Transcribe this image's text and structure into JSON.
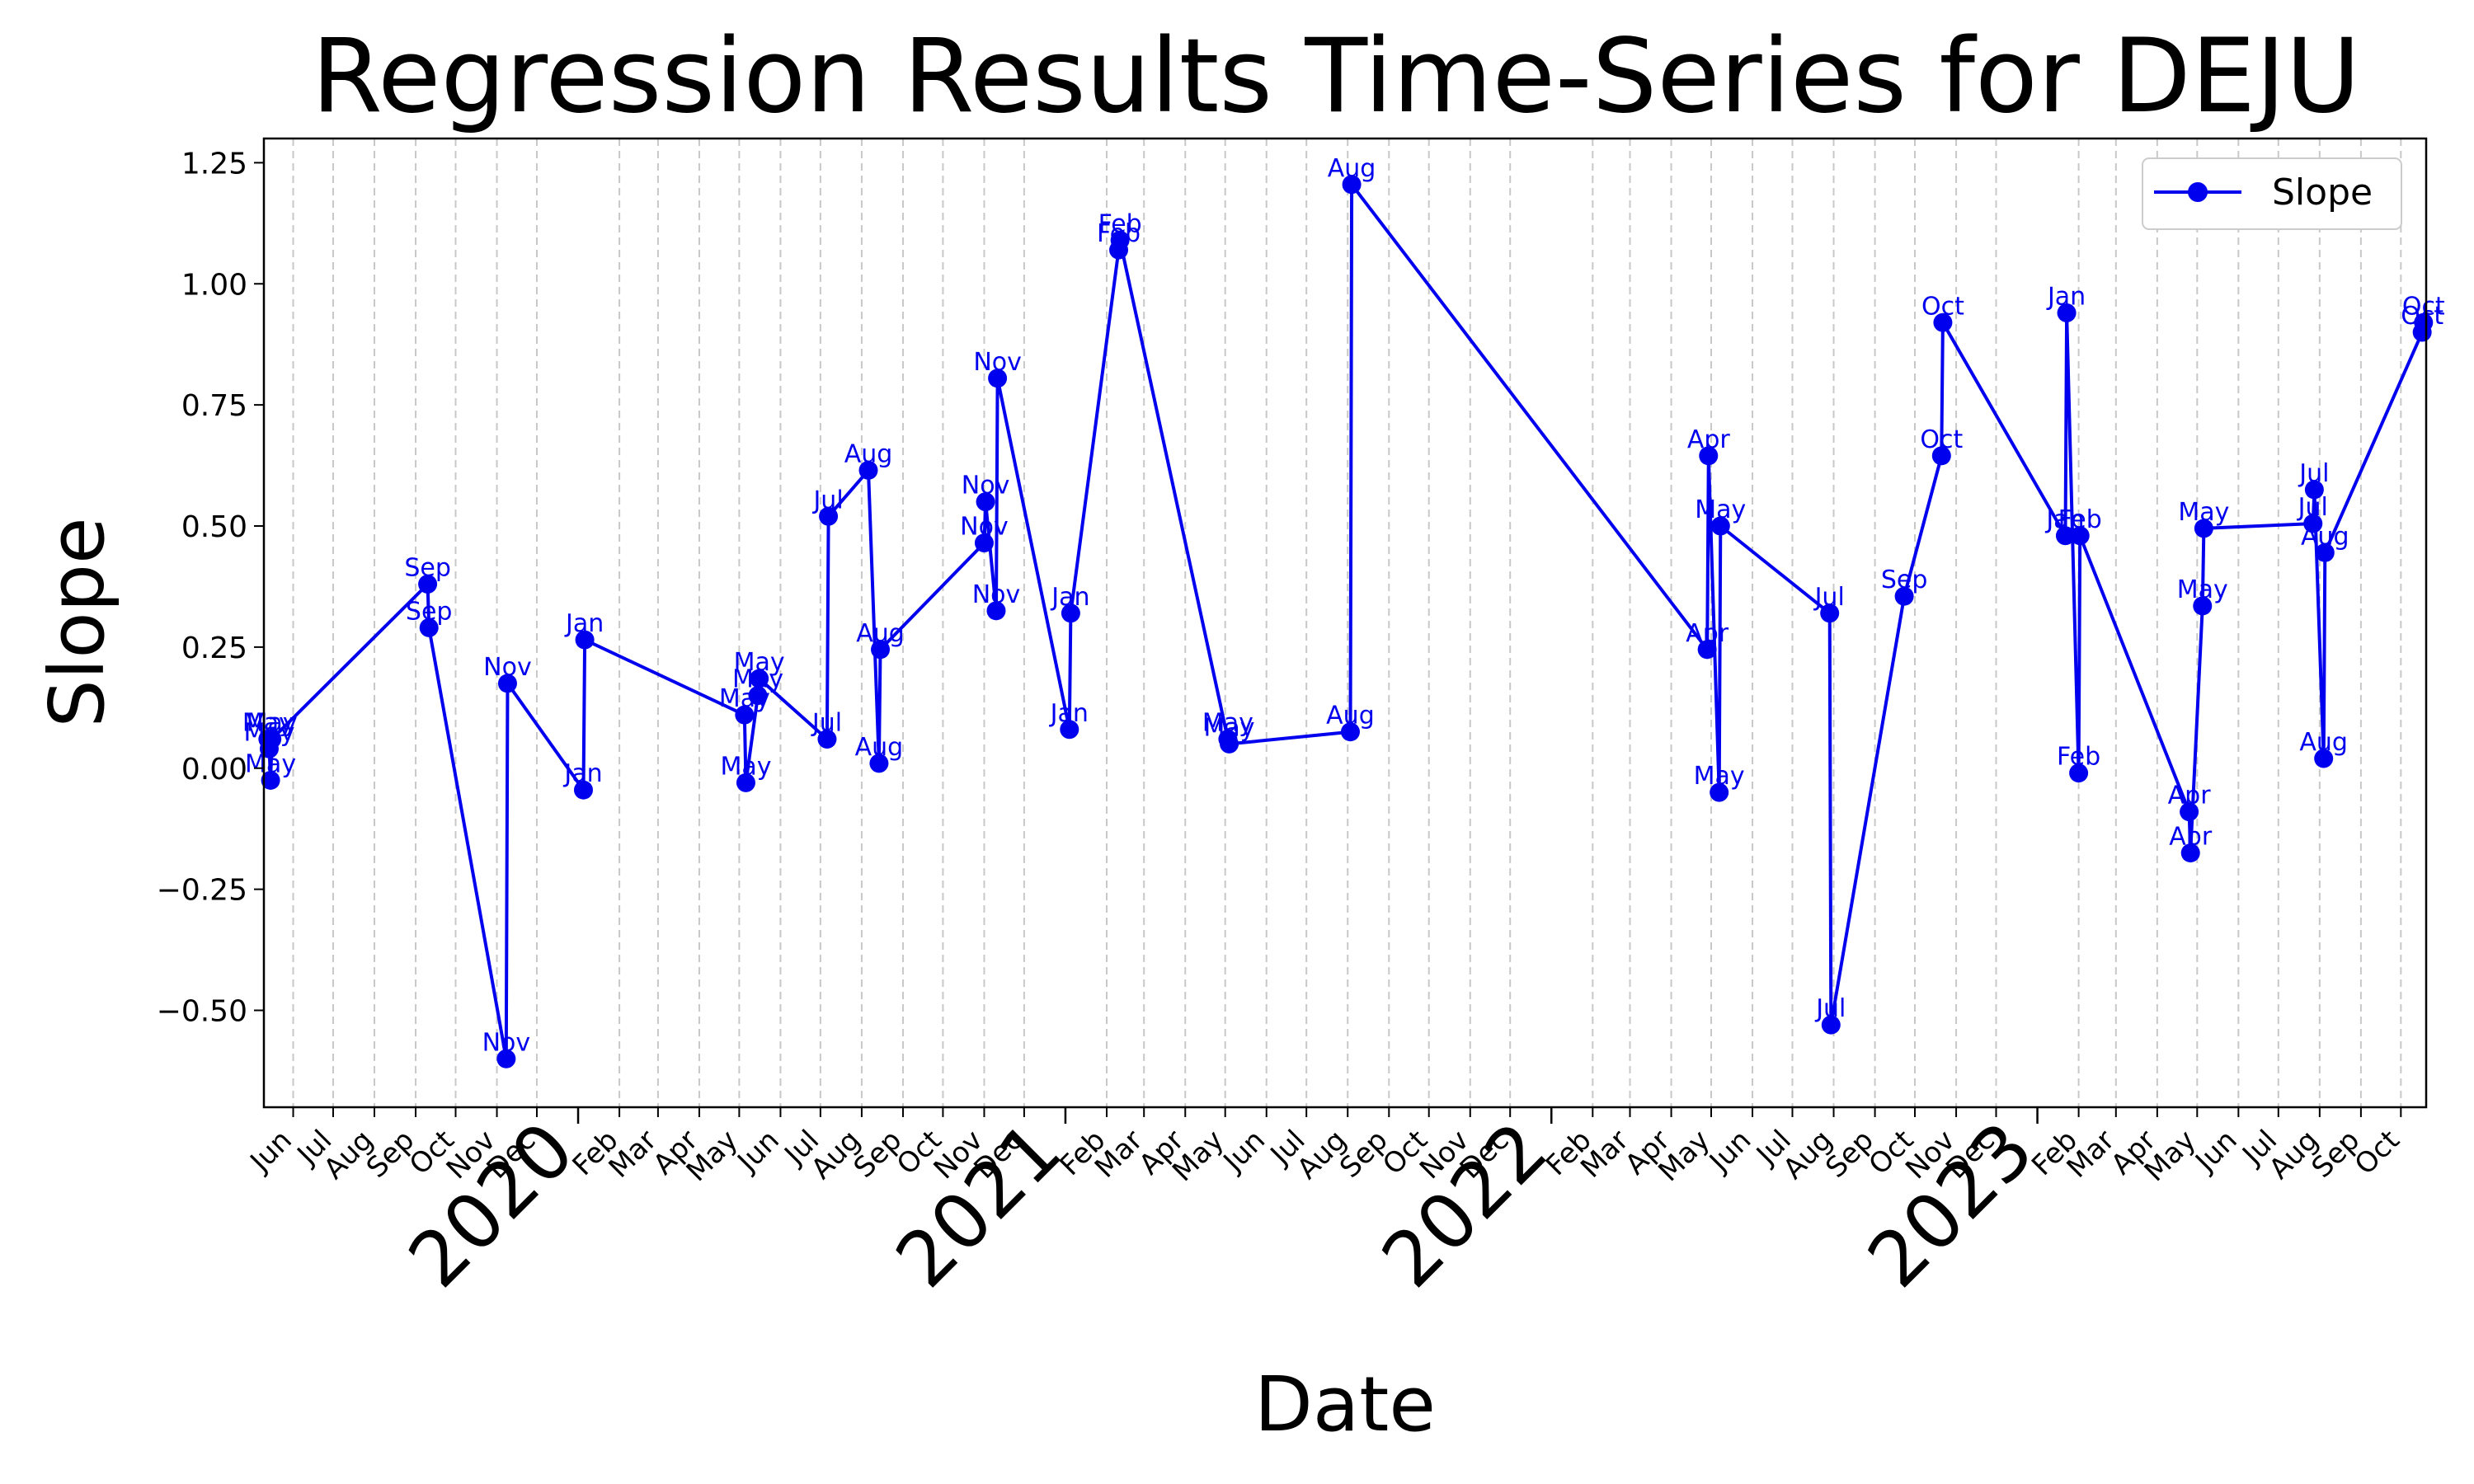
{
  "chart_data": {
    "type": "line",
    "title": "Regression Results Time-Series for DEJU",
    "xlabel": "Date",
    "ylabel": "Slope",
    "ylim": [
      -0.7,
      1.3
    ],
    "xlim": [
      "2019-05-10",
      "2023-10-20"
    ],
    "y_ticks": [
      -0.5,
      -0.25,
      0.0,
      0.25,
      0.5,
      0.75,
      1.0,
      1.25
    ],
    "y_tick_labels": [
      "−0.50",
      "−0.25",
      "0.00",
      "0.25",
      "0.50",
      "0.75",
      "1.00",
      "1.25"
    ],
    "grid": "vertical dashed lines at each month",
    "legend": "upper right",
    "line_color": "#0000ee",
    "month_ticks": [
      {
        "date": "2019-06-01",
        "label": "Jun"
      },
      {
        "date": "2019-07-01",
        "label": "Jul"
      },
      {
        "date": "2019-08-01",
        "label": "Aug"
      },
      {
        "date": "2019-09-01",
        "label": "Sep"
      },
      {
        "date": "2019-10-01",
        "label": "Oct"
      },
      {
        "date": "2019-11-01",
        "label": "Nov"
      },
      {
        "date": "2019-12-01",
        "label": "Dec"
      },
      {
        "date": "2020-02-01",
        "label": "Feb"
      },
      {
        "date": "2020-03-01",
        "label": "Mar"
      },
      {
        "date": "2020-04-01",
        "label": "Apr"
      },
      {
        "date": "2020-05-01",
        "label": "May"
      },
      {
        "date": "2020-06-01",
        "label": "Jun"
      },
      {
        "date": "2020-07-01",
        "label": "Jul"
      },
      {
        "date": "2020-08-01",
        "label": "Aug"
      },
      {
        "date": "2020-09-01",
        "label": "Sep"
      },
      {
        "date": "2020-10-01",
        "label": "Oct"
      },
      {
        "date": "2020-11-01",
        "label": "Nov"
      },
      {
        "date": "2020-12-01",
        "label": "Dec"
      },
      {
        "date": "2021-02-01",
        "label": "Feb"
      },
      {
        "date": "2021-03-01",
        "label": "Mar"
      },
      {
        "date": "2021-04-01",
        "label": "Apr"
      },
      {
        "date": "2021-05-01",
        "label": "May"
      },
      {
        "date": "2021-06-01",
        "label": "Jun"
      },
      {
        "date": "2021-07-01",
        "label": "Jul"
      },
      {
        "date": "2021-08-01",
        "label": "Aug"
      },
      {
        "date": "2021-09-01",
        "label": "Sep"
      },
      {
        "date": "2021-10-01",
        "label": "Oct"
      },
      {
        "date": "2021-11-01",
        "label": "Nov"
      },
      {
        "date": "2021-12-01",
        "label": "Dec"
      },
      {
        "date": "2022-02-01",
        "label": "Feb"
      },
      {
        "date": "2022-03-01",
        "label": "Mar"
      },
      {
        "date": "2022-04-01",
        "label": "Apr"
      },
      {
        "date": "2022-05-01",
        "label": "May"
      },
      {
        "date": "2022-06-01",
        "label": "Jun"
      },
      {
        "date": "2022-07-01",
        "label": "Jul"
      },
      {
        "date": "2022-08-01",
        "label": "Aug"
      },
      {
        "date": "2022-09-01",
        "label": "Sep"
      },
      {
        "date": "2022-10-01",
        "label": "Oct"
      },
      {
        "date": "2022-11-01",
        "label": "Nov"
      },
      {
        "date": "2022-12-01",
        "label": "Dec"
      },
      {
        "date": "2023-02-01",
        "label": "Feb"
      },
      {
        "date": "2023-03-01",
        "label": "Mar"
      },
      {
        "date": "2023-04-01",
        "label": "Apr"
      },
      {
        "date": "2023-05-01",
        "label": "May"
      },
      {
        "date": "2023-06-01",
        "label": "Jun"
      },
      {
        "date": "2023-07-01",
        "label": "Jul"
      },
      {
        "date": "2023-08-01",
        "label": "Aug"
      },
      {
        "date": "2023-09-01",
        "label": "Sep"
      },
      {
        "date": "2023-10-01",
        "label": "Oct"
      }
    ],
    "year_ticks": [
      {
        "date": "2020-01-01",
        "label": "2020"
      },
      {
        "date": "2021-01-01",
        "label": "2021"
      },
      {
        "date": "2022-01-01",
        "label": "2022"
      },
      {
        "date": "2023-01-01",
        "label": "2023"
      }
    ],
    "series": [
      {
        "name": "Slope",
        "points": [
          {
            "x": "2019-05-13",
            "y": 0.06,
            "label": "May"
          },
          {
            "x": "2019-05-14",
            "y": 0.04,
            "label": "May"
          },
          {
            "x": "2019-05-15",
            "y": -0.025,
            "label": "May"
          },
          {
            "x": "2019-05-16",
            "y": 0.06,
            "label": "May"
          },
          {
            "x": "2019-09-10",
            "y": 0.38,
            "label": "Sep"
          },
          {
            "x": "2019-09-11",
            "y": 0.29,
            "label": "Sep"
          },
          {
            "x": "2019-11-08",
            "y": -0.6,
            "label": "Nov"
          },
          {
            "x": "2019-11-09",
            "y": 0.175,
            "label": "Nov"
          },
          {
            "x": "2020-01-05",
            "y": -0.045,
            "label": "Jan"
          },
          {
            "x": "2020-01-06",
            "y": 0.265,
            "label": "Jan"
          },
          {
            "x": "2020-05-05",
            "y": 0.11,
            "label": "May"
          },
          {
            "x": "2020-05-06",
            "y": -0.03,
            "label": "May"
          },
          {
            "x": "2020-05-15",
            "y": 0.15,
            "label": "May"
          },
          {
            "x": "2020-05-16",
            "y": 0.185,
            "label": "May"
          },
          {
            "x": "2020-07-06",
            "y": 0.06,
            "label": "Jul"
          },
          {
            "x": "2020-07-07",
            "y": 0.52,
            "label": "Jul"
          },
          {
            "x": "2020-08-06",
            "y": 0.615,
            "label": "Aug"
          },
          {
            "x": "2020-08-14",
            "y": 0.01,
            "label": "Aug"
          },
          {
            "x": "2020-08-15",
            "y": 0.245,
            "label": "Aug"
          },
          {
            "x": "2020-11-01",
            "y": 0.465,
            "label": "Nov"
          },
          {
            "x": "2020-11-02",
            "y": 0.55,
            "label": "Nov"
          },
          {
            "x": "2020-11-10",
            "y": 0.325,
            "label": "Nov"
          },
          {
            "x": "2020-11-11",
            "y": 0.805,
            "label": "Nov"
          },
          {
            "x": "2021-01-04",
            "y": 0.08,
            "label": "Jan"
          },
          {
            "x": "2021-01-05",
            "y": 0.32,
            "label": "Jan"
          },
          {
            "x": "2021-02-10",
            "y": 1.07,
            "label": "Feb"
          },
          {
            "x": "2021-02-11",
            "y": 1.09,
            "label": "Feb"
          },
          {
            "x": "2021-05-03",
            "y": 0.06,
            "label": "May"
          },
          {
            "x": "2021-05-04",
            "y": 0.05,
            "label": "May"
          },
          {
            "x": "2021-08-03",
            "y": 0.075,
            "label": "Aug"
          },
          {
            "x": "2021-08-04",
            "y": 1.205,
            "label": "Aug"
          },
          {
            "x": "2022-04-28",
            "y": 0.245,
            "label": "Apr"
          },
          {
            "x": "2022-04-29",
            "y": 0.645,
            "label": "Apr"
          },
          {
            "x": "2022-05-07",
            "y": -0.05,
            "label": "May"
          },
          {
            "x": "2022-05-08",
            "y": 0.5,
            "label": "May"
          },
          {
            "x": "2022-07-29",
            "y": 0.32,
            "label": "Jul"
          },
          {
            "x": "2022-07-30",
            "y": -0.53,
            "label": "Jul"
          },
          {
            "x": "2022-09-23",
            "y": 0.355,
            "label": "Sep"
          },
          {
            "x": "2022-10-21",
            "y": 0.645,
            "label": "Oct"
          },
          {
            "x": "2022-10-22",
            "y": 0.92,
            "label": "Oct"
          },
          {
            "x": "2023-01-22",
            "y": 0.48,
            "label": "Jan"
          },
          {
            "x": "2023-01-23",
            "y": 0.94,
            "label": "Jan"
          },
          {
            "x": "2023-02-01",
            "y": -0.01,
            "label": "Feb"
          },
          {
            "x": "2023-02-02",
            "y": 0.48,
            "label": "Feb"
          },
          {
            "x": "2023-04-25",
            "y": -0.09,
            "label": "Apr"
          },
          {
            "x": "2023-04-26",
            "y": -0.175,
            "label": "Apr"
          },
          {
            "x": "2023-05-05",
            "y": 0.335,
            "label": "May"
          },
          {
            "x": "2023-05-06",
            "y": 0.495,
            "label": "May"
          },
          {
            "x": "2023-07-27",
            "y": 0.505,
            "label": "Jul"
          },
          {
            "x": "2023-07-28",
            "y": 0.575,
            "label": "Jul"
          },
          {
            "x": "2023-08-04",
            "y": 0.02,
            "label": "Aug"
          },
          {
            "x": "2023-08-05",
            "y": 0.445,
            "label": "Aug"
          },
          {
            "x": "2023-10-17",
            "y": 0.9,
            "label": "Oct"
          },
          {
            "x": "2023-10-18",
            "y": 0.92,
            "label": "Oct"
          }
        ]
      }
    ]
  }
}
